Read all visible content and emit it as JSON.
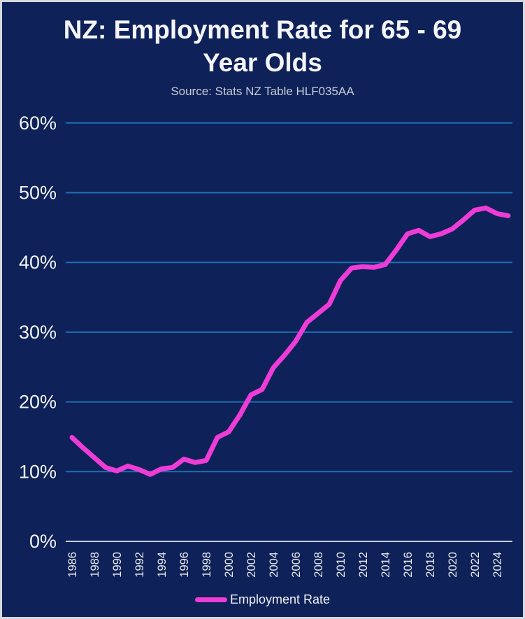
{
  "window": {
    "background_color": "#0E2158",
    "border_color": "#D5D8DD"
  },
  "header": {
    "title": "NZ: Employment Rate for 65 - 69 Year Olds",
    "subtitle": "Source: Stats NZ Table HLF035AA"
  },
  "legend": {
    "label": "Employment Rate",
    "swatch_color": "#EE3CD6"
  },
  "chart_data": {
    "type": "line",
    "title": "NZ: Employment Rate for 65 - 69 Year Olds",
    "source": "Source: Stats NZ Table HLF035AA",
    "x": [
      1986,
      1987,
      1988,
      1989,
      1990,
      1991,
      1992,
      1993,
      1994,
      1995,
      1996,
      1997,
      1998,
      1999,
      2000,
      2001,
      2002,
      2003,
      2004,
      2005,
      2006,
      2007,
      2008,
      2009,
      2010,
      2011,
      2012,
      2013,
      2014,
      2015,
      2016,
      2017,
      2018,
      2019,
      2020,
      2021,
      2022,
      2023,
      2024,
      2025
    ],
    "series": [
      {
        "name": "Employment Rate",
        "color": "#EE3CD6",
        "values": [
          14.9,
          13.4,
          12.0,
          10.6,
          10.1,
          10.8,
          10.3,
          9.6,
          10.4,
          10.6,
          11.8,
          11.3,
          11.6,
          14.9,
          15.7,
          18.1,
          21.0,
          21.8,
          24.9,
          26.7,
          28.7,
          31.4,
          32.7,
          34.0,
          37.4,
          39.2,
          39.4,
          39.3,
          39.7,
          41.8,
          44.1,
          44.6,
          43.7,
          44.1,
          44.8,
          46.1,
          47.5,
          47.8,
          47.0,
          46.7
        ]
      }
    ],
    "xticks": [
      1986,
      1988,
      1990,
      1992,
      1994,
      1996,
      1998,
      2000,
      2002,
      2004,
      2006,
      2008,
      2010,
      2012,
      2014,
      2016,
      2018,
      2020,
      2022,
      2024
    ],
    "yticks": [
      {
        "value": 0,
        "label": "0%"
      },
      {
        "value": 10,
        "label": "10%"
      },
      {
        "value": 20,
        "label": "20%"
      },
      {
        "value": 30,
        "label": "30%"
      },
      {
        "value": 40,
        "label": "40%"
      },
      {
        "value": 50,
        "label": "50%"
      },
      {
        "value": 60,
        "label": "60%"
      }
    ],
    "ylim": [
      0,
      63
    ],
    "grid": true,
    "grid_color": "#1E6FB4",
    "axis_line_color": "#C9CEDA",
    "ytick_color": "#F2F3F5",
    "xtick_color": "#E9EBEF",
    "legend_position": "bottom"
  }
}
